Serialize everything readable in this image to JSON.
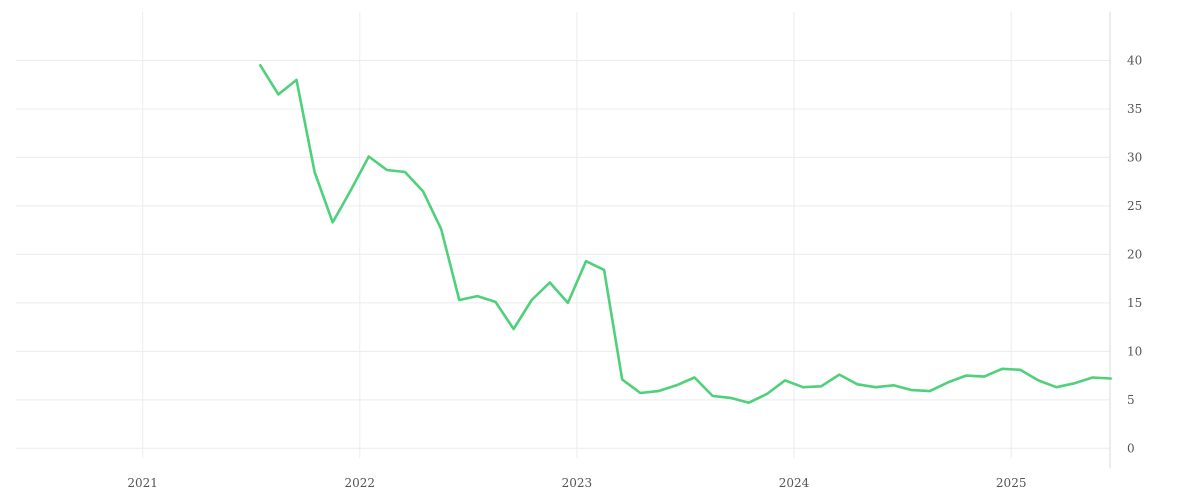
{
  "chart_data": {
    "type": "line",
    "title": "",
    "xlabel": "",
    "ylabel": "",
    "grid": true,
    "y_axis_side": "right",
    "xlim": [
      "2020-06-01",
      "2025-06-15"
    ],
    "ylim": [
      -1,
      45
    ],
    "x_ticks": [
      "2021",
      "2022",
      "2023",
      "2024",
      "2025"
    ],
    "y_ticks": [
      0,
      5,
      10,
      15,
      20,
      25,
      30,
      35,
      40
    ],
    "line_color": "#4fd07a",
    "series": [
      {
        "x": [
          "2021-07",
          "2021-08",
          "2021-09",
          "2021-10",
          "2021-11",
          "2021-12",
          "2022-01",
          "2022-02",
          "2022-03",
          "2022-04",
          "2022-05",
          "2022-06",
          "2022-07",
          "2022-08",
          "2022-09",
          "2022-10",
          "2022-11",
          "2022-12",
          "2023-01",
          "2023-02",
          "2023-03",
          "2023-04",
          "2023-05",
          "2023-06",
          "2023-07",
          "2023-08",
          "2023-09",
          "2023-10",
          "2023-11",
          "2023-12",
          "2024-01",
          "2024-02",
          "2024-03",
          "2024-04",
          "2024-05",
          "2024-06",
          "2024-07",
          "2024-08",
          "2024-09",
          "2024-10",
          "2024-11",
          "2024-12",
          "2025-01",
          "2025-02",
          "2025-03",
          "2025-04",
          "2025-05",
          "2025-06"
        ],
        "values": [
          39.5,
          36.5,
          38.0,
          28.5,
          23.3,
          26.6,
          30.1,
          28.7,
          28.5,
          26.5,
          22.6,
          15.3,
          15.7,
          15.1,
          12.3,
          15.3,
          17.1,
          15.0,
          19.3,
          18.4,
          7.1,
          5.7,
          5.9,
          6.5,
          7.3,
          5.4,
          5.2,
          4.7,
          5.6,
          7.0,
          6.3,
          6.4,
          7.6,
          6.6,
          6.3,
          6.5,
          6.0,
          5.9,
          6.8,
          7.5,
          7.4,
          8.2,
          8.1,
          7.0,
          6.3,
          6.7,
          7.3,
          7.2
        ]
      }
    ]
  }
}
